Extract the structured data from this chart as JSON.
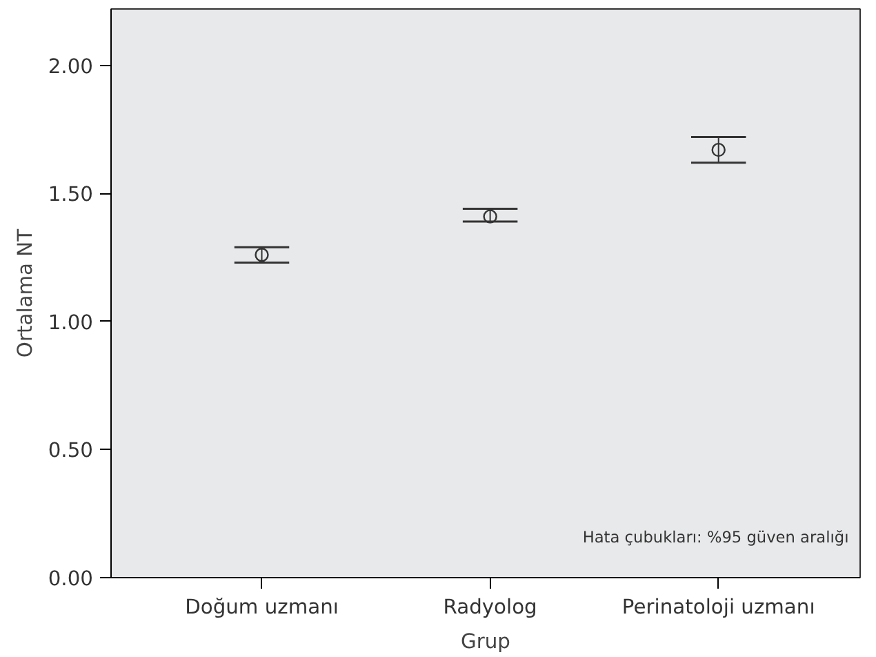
{
  "chart_data": {
    "type": "scatter",
    "xlabel": "Grup",
    "ylabel": "Ortalama NT",
    "categories": [
      "Doğum uzmanı",
      "Radyolog",
      "Perinatoloji uzmanı"
    ],
    "values": [
      1.26,
      1.41,
      1.67
    ],
    "errors": [
      [
        1.23,
        1.29
      ],
      [
        1.39,
        1.44
      ],
      [
        1.62,
        1.72
      ]
    ],
    "color": "#333333",
    "marker": "circle",
    "ylim": [
      0,
      2.22
    ],
    "yticks": [
      {
        "value": 0,
        "label": "0.00"
      },
      {
        "value": 0.5,
        "label": "0.50"
      },
      {
        "value": 1,
        "label": "1.00"
      },
      {
        "value": 1.5,
        "label": "1.50"
      },
      {
        "value": 2,
        "label": "2.00"
      }
    ],
    "grid": false,
    "annotations": [
      "Hata çubukları: %95 güven aralığı"
    ]
  }
}
